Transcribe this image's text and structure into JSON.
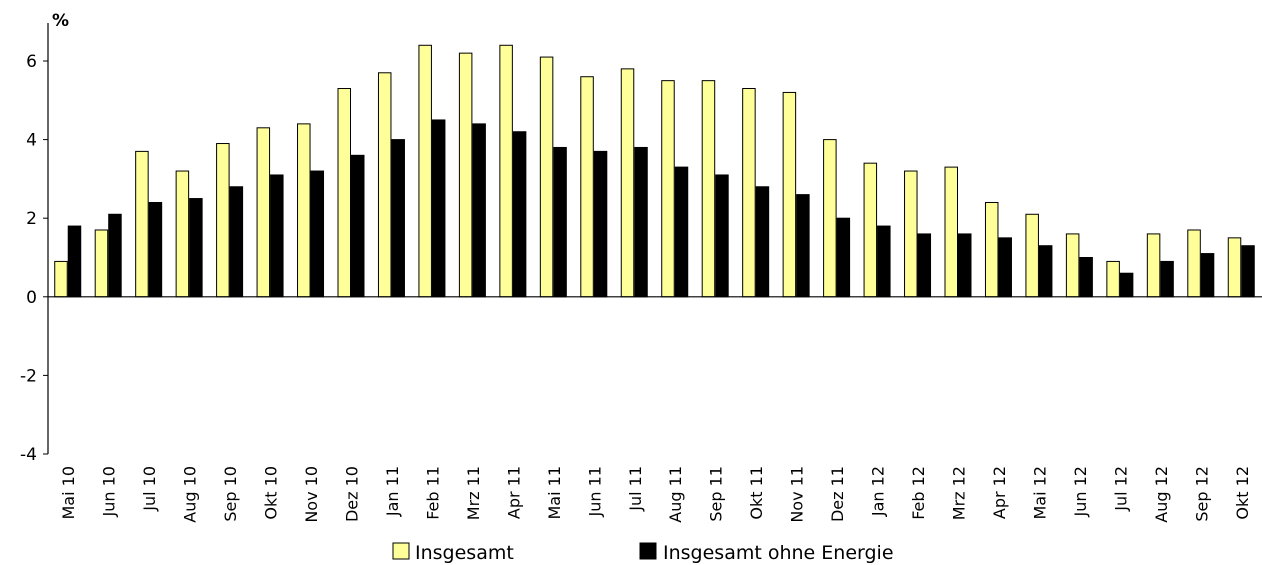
{
  "chart_data": {
    "type": "bar",
    "ylabel": "%",
    "ylim": [
      -4,
      6.6
    ],
    "yticks": [
      -4,
      -2,
      0,
      2,
      4,
      6
    ],
    "categories": [
      "Mai 10",
      "Jun 10",
      "Jul 10",
      "Aug 10",
      "Sep 10",
      "Okt 10",
      "Nov 10",
      "Dez 10",
      "Jan 11",
      "Feb 11",
      "Mrz 11",
      "Apr 11",
      "Mai 11",
      "Jun 11",
      "Jul 11",
      "Aug 11",
      "Sep 11",
      "Okt 11",
      "Nov 11",
      "Dez 11",
      "Jan 12",
      "Feb 12",
      "Mrz 12",
      "Apr 12",
      "Mai 12",
      "Jun 12",
      "Jul 12",
      "Aug 12",
      "Sep 12",
      "Okt 12"
    ],
    "series": [
      {
        "name": "Insgesamt",
        "color": "#ffff99",
        "values": [
          0.9,
          1.7,
          3.7,
          3.2,
          3.9,
          4.3,
          4.4,
          5.3,
          5.7,
          6.4,
          6.2,
          6.4,
          6.1,
          5.6,
          5.8,
          5.5,
          5.5,
          5.3,
          5.2,
          4.0,
          3.4,
          3.2,
          3.3,
          2.4,
          2.1,
          1.6,
          0.9,
          1.6,
          1.7,
          1.5
        ]
      },
      {
        "name": "Insgesamt ohne Energie",
        "color": "#000000",
        "values": [
          1.8,
          2.1,
          2.4,
          2.5,
          2.8,
          3.1,
          3.2,
          3.6,
          4.0,
          4.5,
          4.4,
          4.2,
          3.8,
          3.7,
          3.8,
          3.3,
          3.1,
          2.8,
          2.6,
          2.0,
          1.8,
          1.6,
          1.6,
          1.5,
          1.3,
          1.0,
          0.6,
          0.9,
          1.1,
          1.3
        ]
      }
    ],
    "legend": "bottom"
  }
}
